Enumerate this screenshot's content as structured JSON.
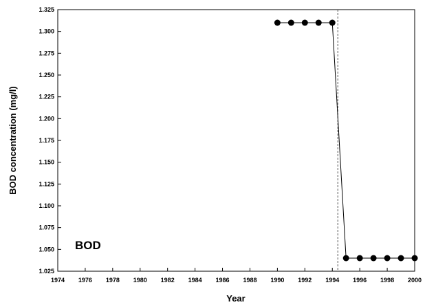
{
  "chart_data": {
    "type": "line",
    "xlabel": "Year",
    "ylabel": "BOD concentration (mg/l)",
    "annotation": "BOD",
    "xlim": [
      1974,
      2000
    ],
    "ylim": [
      1.025,
      1.325
    ],
    "x_ticks": [
      1974,
      1976,
      1978,
      1980,
      1982,
      1984,
      1986,
      1988,
      1990,
      1992,
      1994,
      1996,
      1998,
      2000
    ],
    "y_ticks": [
      "1.025",
      "1.050",
      "1.075",
      "1.100",
      "1.125",
      "1.150",
      "1.175",
      "1.200",
      "1.225",
      "1.250",
      "1.275",
      "1.300",
      "1.325"
    ],
    "grid": false,
    "change_point_year": 1994.4,
    "series": [
      {
        "x": [
          1990,
          1991,
          1992,
          1993,
          1994,
          1995,
          1996,
          1997,
          1998,
          1999,
          2000
        ],
        "y": [
          1.31,
          1.31,
          1.31,
          1.31,
          1.31,
          1.04,
          1.04,
          1.04,
          1.04,
          1.04,
          1.04
        ]
      }
    ],
    "colors": {
      "line": "#000000",
      "marker": "#000000",
      "divider": "#555555"
    }
  }
}
